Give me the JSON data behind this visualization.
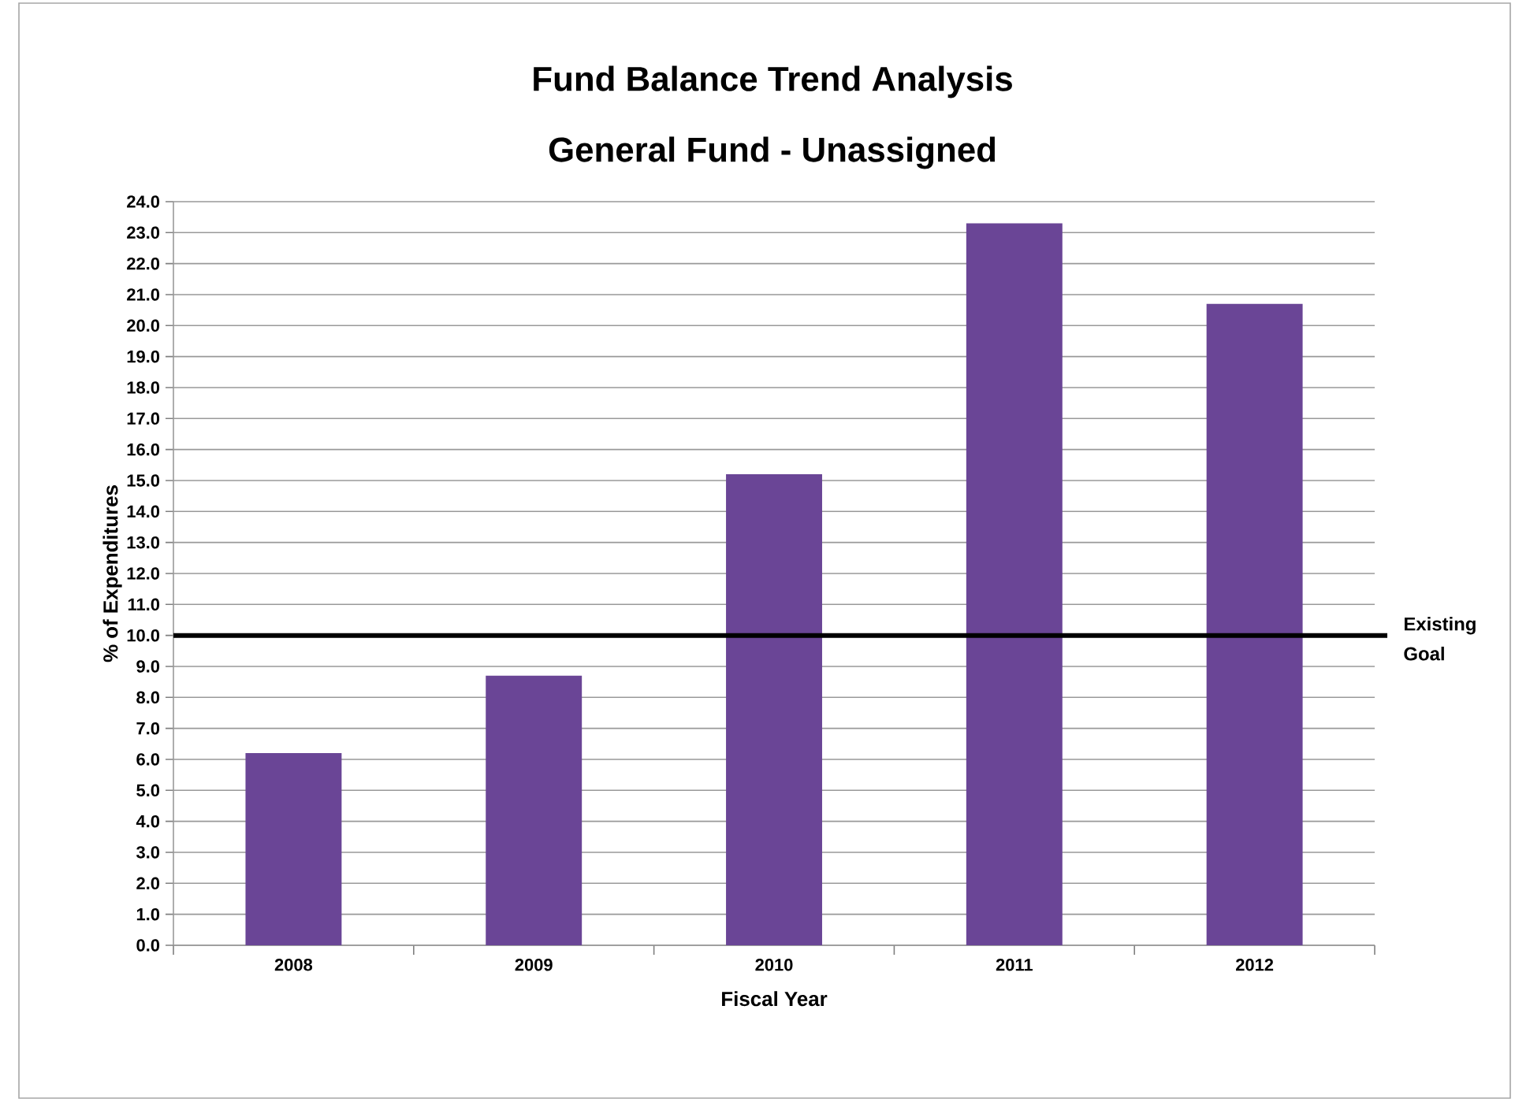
{
  "chart_data": {
    "type": "bar",
    "title": "Fund Balance Trend Analysis",
    "subtitle": "General Fund - Unassigned",
    "xlabel": "Fiscal Year",
    "ylabel": "% of Expenditures",
    "categories": [
      "2008",
      "2009",
      "2010",
      "2011",
      "2012"
    ],
    "values": [
      6.2,
      8.7,
      15.2,
      23.3,
      20.7
    ],
    "color": "#6a4596",
    "ylim": [
      0,
      24
    ],
    "yticks": [
      {
        "value": 0,
        "label": "0.0"
      },
      {
        "value": 1,
        "label": "1.0"
      },
      {
        "value": 2,
        "label": "2.0"
      },
      {
        "value": 3,
        "label": "3.0"
      },
      {
        "value": 4,
        "label": "4.0"
      },
      {
        "value": 5,
        "label": "5.0"
      },
      {
        "value": 6,
        "label": "6.0"
      },
      {
        "value": 7,
        "label": "7.0"
      },
      {
        "value": 8,
        "label": "8.0"
      },
      {
        "value": 9,
        "label": "9.0"
      },
      {
        "value": 10,
        "label": "10.0"
      },
      {
        "value": 11,
        "label": "11.0"
      },
      {
        "value": 12,
        "label": "12.0"
      },
      {
        "value": 13,
        "label": "13.0"
      },
      {
        "value": 14,
        "label": "14.0"
      },
      {
        "value": 15,
        "label": "15.0"
      },
      {
        "value": 16,
        "label": "16.0"
      },
      {
        "value": 17,
        "label": "17.0"
      },
      {
        "value": 18,
        "label": "18.0"
      },
      {
        "value": 19,
        "label": "19.0"
      },
      {
        "value": 20,
        "label": "20.0"
      },
      {
        "value": 21,
        "label": "21.0"
      },
      {
        "value": 22,
        "label": "22.0"
      },
      {
        "value": 23,
        "label": "23.0"
      },
      {
        "value": 24,
        "label": "24.0"
      }
    ],
    "grid": "y",
    "ref_lines": [
      {
        "axis": "y",
        "value": 10,
        "label": "Existing Goal",
        "color": "#000000",
        "line_style": "solid"
      }
    ]
  }
}
